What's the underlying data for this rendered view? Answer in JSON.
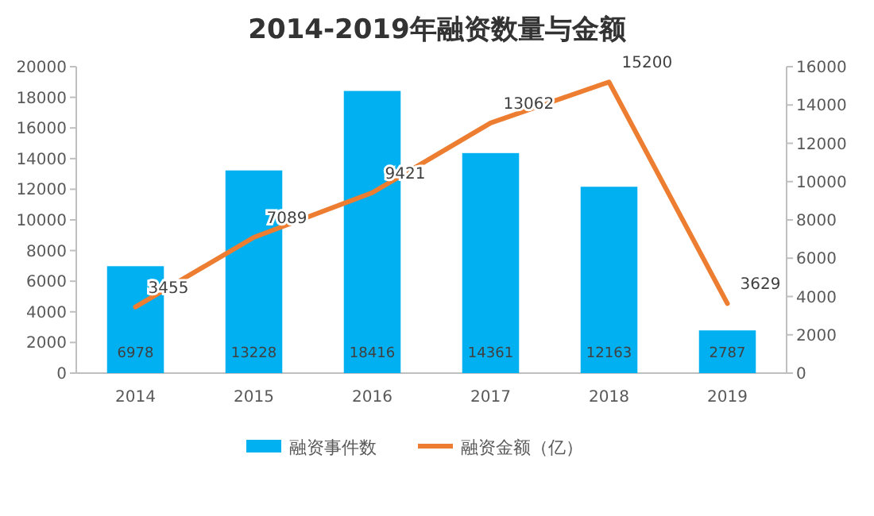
{
  "chart_data": {
    "type": "bar",
    "title": "2014-2019年融资数量与金额",
    "categories": [
      "2014",
      "2015",
      "2016",
      "2017",
      "2018",
      "2019"
    ],
    "series": [
      {
        "name": "融资事件数",
        "color": "#00b0f0",
        "values": [
          6978,
          13228,
          18416,
          14361,
          12163,
          2787
        ]
      },
      {
        "name": "融资金额（亿）",
        "type": "line",
        "axis": "y2",
        "color": "#ed7d31",
        "values": [
          3455,
          7089,
          9421,
          13062,
          15200,
          3629
        ]
      }
    ],
    "ylim": [
      0,
      20000
    ],
    "yticks": [
      0,
      2000,
      4000,
      6000,
      8000,
      10000,
      12000,
      14000,
      16000,
      18000,
      20000
    ],
    "y2lim": [
      0,
      16000
    ],
    "y2ticks": [
      0,
      2000,
      4000,
      6000,
      8000,
      10000,
      12000,
      14000,
      16000
    ],
    "data_labels": true,
    "legend": "bottom",
    "grid": false,
    "marker": "none"
  }
}
